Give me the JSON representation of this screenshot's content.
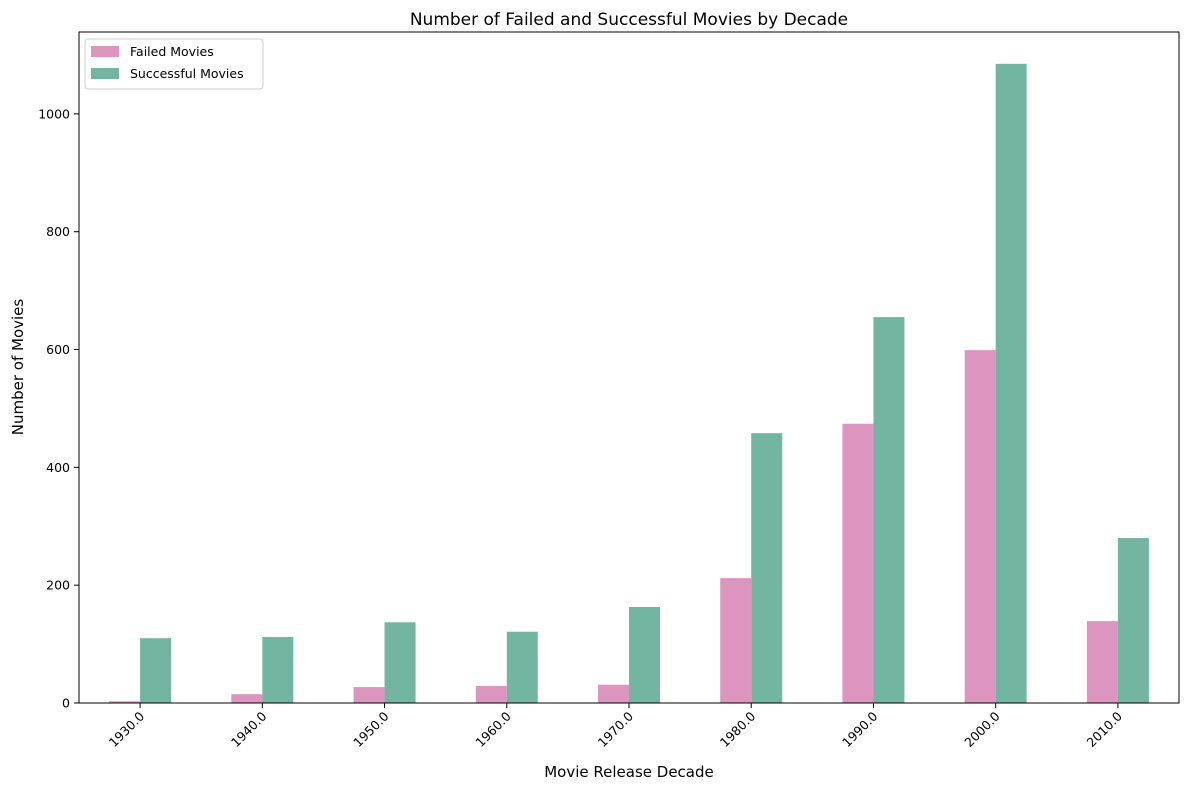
{
  "chart_data": {
    "type": "bar",
    "title": "Number of Failed and Successful Movies by Decade",
    "xlabel": "Movie Release Decade",
    "ylabel": "Number of Movies",
    "categories": [
      "1930.0",
      "1940.0",
      "1950.0",
      "1960.0",
      "1970.0",
      "1980.0",
      "1990.0",
      "2000.0",
      "2010.0"
    ],
    "series": [
      {
        "name": "Failed Movies",
        "color": "#db95bf",
        "values": [
          3,
          15,
          27,
          29,
          31,
          212,
          474,
          599,
          139
        ]
      },
      {
        "name": "Successful Movies",
        "color": "#72b5a0",
        "values": [
          110,
          112,
          137,
          121,
          163,
          458,
          655,
          1085,
          280
        ]
      }
    ],
    "ylim": [
      0,
      1139
    ],
    "yticks": [
      "0",
      "200",
      "400",
      "600",
      "800",
      "1000"
    ],
    "grid": false,
    "legend": "top-left"
  }
}
